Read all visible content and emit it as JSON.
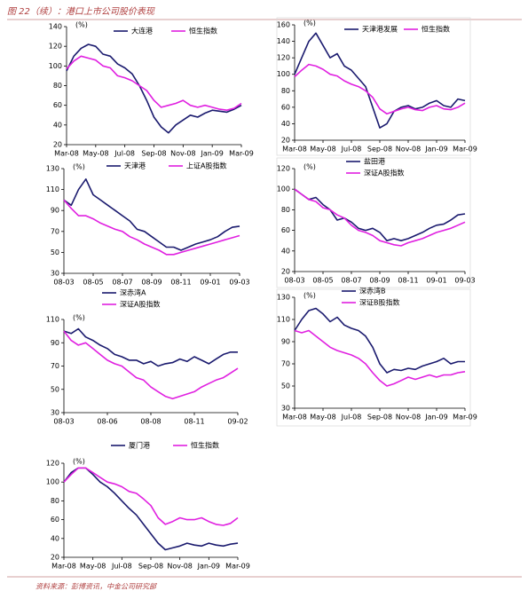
{
  "header": {
    "title": "图 22（续）：港口上市公司股价表现"
  },
  "chart_data": [
    {
      "type": "line",
      "y_label": "(%)",
      "categories": [
        "Mar-08",
        null,
        null,
        null,
        "May-08",
        null,
        null,
        null,
        "Jul-08",
        null,
        null,
        null,
        "Sep-08",
        null,
        null,
        null,
        "Nov-08",
        null,
        null,
        null,
        "Jan-09",
        null,
        null,
        null,
        "Mar-09"
      ],
      "ylim": [
        20,
        140
      ],
      "yticks": [
        20,
        40,
        60,
        80,
        100,
        120,
        140
      ],
      "series": [
        {
          "name": "大连港",
          "color": "#1a1a6e",
          "values": [
            95,
            110,
            118,
            122,
            120,
            112,
            110,
            102,
            98,
            92,
            80,
            65,
            48,
            38,
            32,
            40,
            45,
            50,
            48,
            52,
            55,
            54,
            53,
            56,
            60
          ]
        },
        {
          "name": "恒生指数",
          "color": "#e020e0",
          "values": [
            97,
            105,
            110,
            108,
            106,
            100,
            98,
            90,
            88,
            85,
            80,
            75,
            65,
            58,
            60,
            62,
            65,
            60,
            58,
            60,
            58,
            56,
            55,
            57,
            62
          ]
        }
      ]
    },
    {
      "type": "line",
      "y_label": "(%)",
      "categories": [
        "Mar-08",
        null,
        null,
        null,
        "May-08",
        null,
        null,
        null,
        "Jul-08",
        null,
        null,
        null,
        "Sep-08",
        null,
        null,
        null,
        "Nov-08",
        null,
        null,
        null,
        "Jan-09",
        null,
        null,
        null,
        "Mar-09"
      ],
      "ylim": [
        20,
        160
      ],
      "yticks": [
        20,
        40,
        60,
        80,
        100,
        120,
        140,
        160
      ],
      "series": [
        {
          "name": "天津港发展",
          "color": "#1a1a6e",
          "values": [
            100,
            120,
            140,
            150,
            135,
            120,
            125,
            110,
            105,
            95,
            85,
            60,
            35,
            40,
            55,
            60,
            62,
            58,
            60,
            65,
            68,
            62,
            60,
            70,
            68
          ]
        },
        {
          "name": "恒生指数",
          "color": "#e020e0",
          "values": [
            97,
            105,
            112,
            110,
            106,
            100,
            98,
            92,
            88,
            85,
            80,
            72,
            58,
            52,
            55,
            58,
            60,
            57,
            56,
            60,
            62,
            58,
            57,
            60,
            65
          ]
        }
      ]
    },
    {
      "type": "line",
      "y_label": "(%)",
      "categories": [
        "08-03",
        null,
        null,
        null,
        "08-05",
        null,
        null,
        null,
        "08-07",
        null,
        null,
        null,
        "08-09",
        null,
        null,
        null,
        "08-11",
        null,
        null,
        null,
        "09-01",
        null,
        null,
        null,
        "09-03"
      ],
      "ylim": [
        30,
        130
      ],
      "yticks": [
        30,
        50,
        70,
        90,
        110,
        130
      ],
      "series": [
        {
          "name": "天津港",
          "color": "#1a1a6e",
          "values": [
            100,
            95,
            110,
            120,
            105,
            100,
            95,
            90,
            85,
            80,
            72,
            70,
            65,
            60,
            55,
            55,
            52,
            55,
            58,
            60,
            62,
            65,
            70,
            74,
            75
          ]
        },
        {
          "name": "上证A股指数",
          "color": "#e020e0",
          "values": [
            100,
            92,
            85,
            85,
            82,
            78,
            75,
            72,
            70,
            65,
            62,
            58,
            55,
            52,
            48,
            48,
            50,
            52,
            54,
            56,
            58,
            60,
            62,
            64,
            66
          ]
        }
      ]
    },
    {
      "type": "line",
      "y_label": "(%)",
      "categories": [
        "08-03",
        null,
        null,
        null,
        "08-05",
        null,
        null,
        null,
        "08-07",
        null,
        null,
        null,
        "08-09",
        null,
        null,
        null,
        "08-11",
        null,
        null,
        null,
        "09-01",
        null,
        null,
        null,
        "09-03"
      ],
      "ylim": [
        20,
        120
      ],
      "yticks": [
        20,
        40,
        60,
        80,
        100,
        120
      ],
      "series": [
        {
          "name": "盐田港",
          "color": "#1a1a6e",
          "values": [
            100,
            95,
            90,
            92,
            85,
            80,
            70,
            72,
            68,
            62,
            60,
            62,
            58,
            50,
            52,
            50,
            52,
            55,
            58,
            62,
            65,
            66,
            70,
            75,
            76
          ]
        },
        {
          "name": "深证A股指数",
          "color": "#e020e0",
          "values": [
            100,
            95,
            90,
            88,
            82,
            80,
            75,
            72,
            65,
            60,
            58,
            55,
            50,
            48,
            46,
            45,
            48,
            50,
            52,
            55,
            58,
            60,
            62,
            65,
            68
          ]
        }
      ]
    },
    {
      "type": "line",
      "y_label": "(%)",
      "categories": [
        "08-03",
        null,
        null,
        null,
        null,
        null,
        "08-06",
        null,
        null,
        null,
        null,
        null,
        "08-08",
        null,
        null,
        null,
        null,
        null,
        "08-11",
        null,
        null,
        null,
        null,
        null,
        "09-02"
      ],
      "ylim": [
        30,
        110
      ],
      "yticks": [
        30,
        50,
        70,
        90,
        110
      ],
      "series": [
        {
          "name": "深赤湾A",
          "color": "#1a1a6e",
          "values": [
            100,
            98,
            102,
            95,
            92,
            88,
            85,
            80,
            78,
            75,
            75,
            72,
            74,
            70,
            72,
            73,
            76,
            74,
            78,
            75,
            72,
            76,
            80,
            82,
            82
          ]
        },
        {
          "name": "深证A股指数",
          "color": "#e020e0",
          "values": [
            100,
            92,
            88,
            90,
            85,
            80,
            75,
            72,
            70,
            65,
            60,
            58,
            52,
            48,
            44,
            42,
            44,
            46,
            48,
            52,
            55,
            58,
            60,
            64,
            68
          ]
        }
      ]
    },
    {
      "type": "line",
      "y_label": "(%)",
      "categories": [
        "Mar-08",
        null,
        null,
        null,
        "May-08",
        null,
        null,
        null,
        "Jul-08",
        null,
        null,
        null,
        "Sep-08",
        null,
        null,
        null,
        "Nov-08",
        null,
        null,
        null,
        "Jan-09",
        null,
        null,
        null,
        "Mar-09"
      ],
      "ylim": [
        30,
        130
      ],
      "yticks": [
        30,
        50,
        70,
        90,
        110,
        130
      ],
      "series": [
        {
          "name": "深赤湾B",
          "color": "#1a1a6e",
          "values": [
            100,
            110,
            118,
            120,
            115,
            108,
            112,
            105,
            102,
            100,
            95,
            85,
            70,
            62,
            65,
            64,
            66,
            65,
            68,
            70,
            72,
            75,
            70,
            72,
            72
          ]
        },
        {
          "name": "深证B股指数",
          "color": "#e020e0",
          "values": [
            100,
            98,
            100,
            95,
            90,
            85,
            82,
            80,
            78,
            75,
            70,
            62,
            55,
            50,
            52,
            55,
            58,
            56,
            58,
            60,
            58,
            60,
            60,
            62,
            63
          ]
        }
      ]
    },
    {
      "type": "line",
      "y_label": "(%)",
      "categories": [
        "Mar-08",
        null,
        null,
        null,
        "May-08",
        null,
        null,
        null,
        "Jul-08",
        null,
        null,
        null,
        "Sep-08",
        null,
        null,
        null,
        "Nov-08",
        null,
        null,
        null,
        "Jan-09",
        null,
        null,
        null,
        "Mar-09"
      ],
      "ylim": [
        20,
        120
      ],
      "yticks": [
        20,
        40,
        60,
        80,
        100,
        120
      ],
      "series": [
        {
          "name": "厦门港",
          "color": "#1a1a6e",
          "values": [
            100,
            110,
            115,
            115,
            108,
            100,
            95,
            88,
            80,
            72,
            65,
            55,
            45,
            35,
            28,
            30,
            32,
            35,
            33,
            32,
            35,
            33,
            32,
            34,
            35
          ]
        },
        {
          "name": "恒生指数",
          "color": "#e020e0",
          "values": [
            100,
            108,
            115,
            115,
            110,
            105,
            100,
            98,
            95,
            90,
            88,
            82,
            75,
            62,
            55,
            58,
            62,
            60,
            60,
            62,
            58,
            55,
            54,
            56,
            62
          ]
        }
      ]
    }
  ],
  "footer": {
    "source": "资料来源：彭博资讯，中金公司研究部"
  }
}
